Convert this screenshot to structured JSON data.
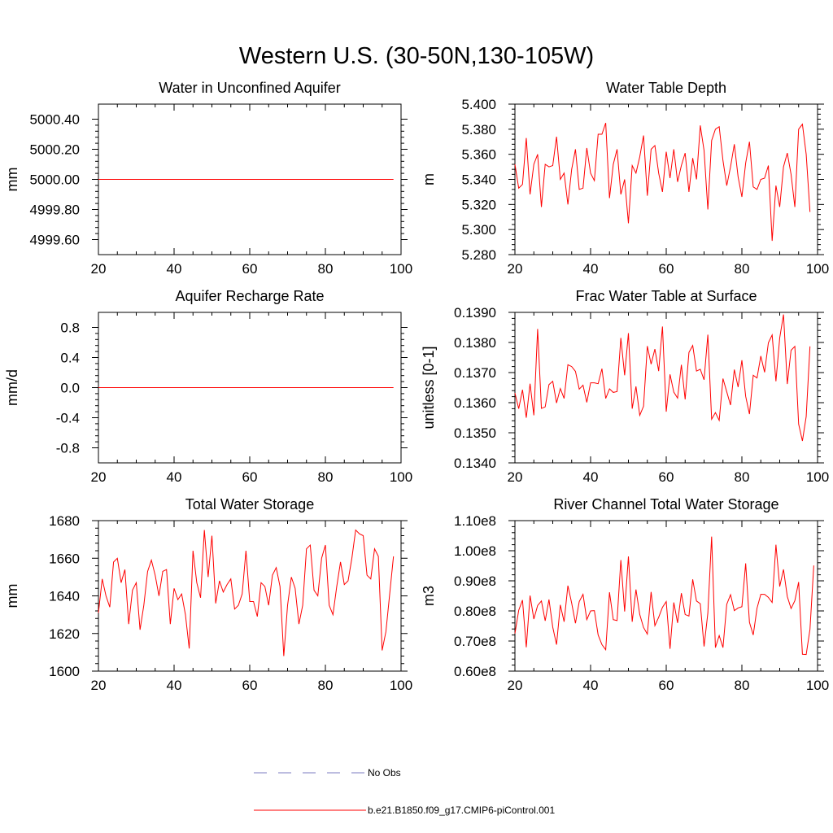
{
  "chart_data": {
    "title": "Western U.S. (30-50N,130-105W)",
    "legend": [
      {
        "label": "No Obs",
        "color": "#7b7bc0",
        "style": "dashed"
      },
      {
        "label": "b.e21.B1850.f09_g17.CMIP6-piControl.001",
        "color": "#ff0000",
        "style": "solid"
      }
    ],
    "panels": [
      {
        "type": "line",
        "title": "Water in Unconfined Aquifer",
        "ylabel": "mm",
        "xlim": [
          20,
          100
        ],
        "ylim": [
          4999.5,
          5000.5
        ],
        "xticks": [
          20,
          40,
          60,
          80,
          100
        ],
        "yticks": [
          4999.6,
          4999.8,
          5000.0,
          5000.2,
          5000.4
        ],
        "ytick_labels": [
          "4999.60",
          "4999.80",
          "5000.00",
          "5000.20",
          "5000.40"
        ],
        "x_start": 20,
        "values": [
          5000,
          5000,
          5000,
          5000,
          5000,
          5000,
          5000,
          5000,
          5000,
          5000,
          5000,
          5000,
          5000,
          5000,
          5000,
          5000,
          5000,
          5000,
          5000,
          5000,
          5000,
          5000,
          5000,
          5000,
          5000,
          5000,
          5000,
          5000,
          5000,
          5000,
          5000,
          5000,
          5000,
          5000,
          5000,
          5000,
          5000,
          5000,
          5000,
          5000,
          5000,
          5000,
          5000,
          5000,
          5000,
          5000,
          5000,
          5000,
          5000,
          5000,
          5000,
          5000,
          5000,
          5000,
          5000,
          5000,
          5000,
          5000,
          5000,
          5000,
          5000,
          5000,
          5000,
          5000,
          5000,
          5000,
          5000,
          5000,
          5000,
          5000,
          5000,
          5000,
          5000,
          5000,
          5000,
          5000,
          5000,
          5000,
          5000
        ]
      },
      {
        "type": "line",
        "title": "Water Table Depth",
        "ylabel": "m",
        "xlim": [
          20,
          100
        ],
        "ylim": [
          5.28,
          5.4
        ],
        "xticks": [
          20,
          40,
          60,
          80,
          100
        ],
        "yticks": [
          5.28,
          5.3,
          5.32,
          5.34,
          5.36,
          5.38,
          5.4
        ],
        "ytick_labels": [
          "5.280",
          "5.300",
          "5.320",
          "5.340",
          "5.360",
          "5.380",
          "5.400"
        ],
        "x_start": 20,
        "values": [
          5.352,
          5.333,
          5.336,
          5.373,
          5.328,
          5.352,
          5.36,
          5.318,
          5.352,
          5.35,
          5.351,
          5.374,
          5.34,
          5.345,
          5.32,
          5.348,
          5.364,
          5.332,
          5.333,
          5.365,
          5.345,
          5.339,
          5.376,
          5.376,
          5.385,
          5.325,
          5.352,
          5.364,
          5.328,
          5.34,
          5.305,
          5.351,
          5.345,
          5.358,
          5.375,
          5.327,
          5.364,
          5.367,
          5.345,
          5.33,
          5.362,
          5.341,
          5.364,
          5.338,
          5.351,
          5.361,
          5.33,
          5.357,
          5.34,
          5.383,
          5.363,
          5.316,
          5.371,
          5.38,
          5.382,
          5.355,
          5.335,
          5.35,
          5.368,
          5.342,
          5.326,
          5.353,
          5.37,
          5.334,
          5.332,
          5.34,
          5.341,
          5.351,
          5.291,
          5.335,
          5.318,
          5.35,
          5.361,
          5.344,
          5.318,
          5.38,
          5.384,
          5.36,
          5.314
        ]
      },
      {
        "type": "line",
        "title": "Aquifer Recharge Rate",
        "ylabel": "mm/d",
        "xlim": [
          20,
          100
        ],
        "ylim": [
          -1.0,
          1.0
        ],
        "xticks": [
          20,
          40,
          60,
          80,
          100
        ],
        "yticks": [
          -0.8,
          -0.4,
          0.0,
          0.4,
          0.8
        ],
        "ytick_labels": [
          "-0.8",
          "-0.4",
          "0.0",
          "0.4",
          "0.8"
        ],
        "x_start": 20,
        "values": [
          0,
          0,
          0,
          0,
          0,
          0,
          0,
          0,
          0,
          0,
          0,
          0,
          0,
          0,
          0,
          0,
          0,
          0,
          0,
          0,
          0,
          0,
          0,
          0,
          0,
          0,
          0,
          0,
          0,
          0,
          0,
          0,
          0,
          0,
          0,
          0,
          0,
          0,
          0,
          0,
          0,
          0,
          0,
          0,
          0,
          0,
          0,
          0,
          0,
          0,
          0,
          0,
          0,
          0,
          0,
          0,
          0,
          0,
          0,
          0,
          0,
          0,
          0,
          0,
          0,
          0,
          0,
          0,
          0,
          0,
          0,
          0,
          0,
          0,
          0,
          0,
          0,
          0,
          0
        ]
      },
      {
        "type": "line",
        "title": "Frac Water Table at Surface",
        "ylabel": "unitless [0-1]",
        "xlim": [
          20,
          100
        ],
        "ylim": [
          0.134,
          0.139
        ],
        "xticks": [
          20,
          40,
          60,
          80,
          100
        ],
        "yticks": [
          0.134,
          0.135,
          0.136,
          0.137,
          0.138,
          0.139
        ],
        "ytick_labels": [
          "0.1340",
          "0.1350",
          "0.1360",
          "0.1370",
          "0.1380",
          "0.1390"
        ],
        "x_start": 20,
        "values": [
          0.13632,
          0.1358,
          0.13643,
          0.1355,
          0.13663,
          0.13558,
          0.13845,
          0.13581,
          0.13586,
          0.1366,
          0.13671,
          0.13599,
          0.13647,
          0.13614,
          0.13726,
          0.1372,
          0.13704,
          0.13645,
          0.13658,
          0.13601,
          0.13666,
          0.13666,
          0.13663,
          0.13713,
          0.13614,
          0.13646,
          0.13634,
          0.13637,
          0.13815,
          0.13691,
          0.13831,
          0.1358,
          0.13654,
          0.13558,
          0.13588,
          0.13788,
          0.13728,
          0.13778,
          0.13705,
          0.13853,
          0.1357,
          0.13694,
          0.13635,
          0.13615,
          0.13726,
          0.13611,
          0.13767,
          0.1379,
          0.13705,
          0.13711,
          0.13676,
          0.13826,
          0.13545,
          0.13567,
          0.13541,
          0.1368,
          0.13636,
          0.13592,
          0.1371,
          0.13652,
          0.13741,
          0.13621,
          0.13562,
          0.13691,
          0.13682,
          0.13755,
          0.13701,
          0.13799,
          0.13825,
          0.13671,
          0.13815,
          0.13893,
          0.13662,
          0.13774,
          0.13787,
          0.13529,
          0.13473,
          0.13554,
          0.13787
        ]
      },
      {
        "type": "line",
        "title": "Total Water Storage",
        "ylabel": "mm",
        "xlim": [
          20,
          100
        ],
        "ylim": [
          1600,
          1680
        ],
        "xticks": [
          20,
          40,
          60,
          80,
          100
        ],
        "yticks": [
          1600,
          1620,
          1640,
          1660,
          1680
        ],
        "ytick_labels": [
          "1600",
          "1620",
          "1640",
          "1660",
          "1680"
        ],
        "x_start": 20,
        "values": [
          1631,
          1649,
          1640,
          1634,
          1658,
          1660,
          1647,
          1654,
          1625,
          1643,
          1647,
          1622,
          1635,
          1653,
          1659,
          1651,
          1640,
          1653,
          1654,
          1625,
          1644,
          1638,
          1641,
          1630,
          1612,
          1664,
          1647,
          1639,
          1675,
          1650,
          1672,
          1636,
          1648,
          1642,
          1646,
          1649,
          1633,
          1635,
          1641,
          1664,
          1637,
          1637,
          1629,
          1647,
          1645,
          1635,
          1651,
          1655,
          1645,
          1608,
          1635,
          1650,
          1644,
          1625,
          1635,
          1665,
          1667,
          1643,
          1640,
          1660,
          1667,
          1635,
          1630,
          1645,
          1658,
          1646,
          1648,
          1660,
          1675,
          1673,
          1672,
          1651,
          1649,
          1665,
          1661,
          1611,
          1621,
          1641,
          1661
        ]
      },
      {
        "type": "line",
        "title": "River Channel Total Water Storage",
        "ylabel": "m3",
        "xlim": [
          20,
          100
        ],
        "ylim": [
          60000000,
          110000000
        ],
        "xticks": [
          20,
          40,
          60,
          80,
          100
        ],
        "yticks": [
          60000000,
          70000000,
          80000000,
          90000000,
          100000000,
          110000000
        ],
        "ytick_labels": [
          "0.60e8",
          "0.70e8",
          "0.80e8",
          "0.90e8",
          "1.00e8",
          "1.10e8"
        ],
        "x_start": 20,
        "values": [
          72500000,
          80200000,
          83600000,
          67900000,
          85100000,
          77300000,
          81800000,
          83300000,
          76700000,
          83800000,
          74600000,
          68800000,
          82000000,
          76400000,
          88400000,
          82600000,
          75900000,
          83100000,
          85500000,
          77100000,
          80000000,
          80100000,
          72000000,
          68800000,
          67100000,
          86200000,
          77100000,
          76800000,
          96900000,
          79800000,
          98100000,
          76400000,
          87100000,
          78800000,
          74500000,
          72300000,
          86300000,
          75100000,
          77900000,
          81200000,
          83100000,
          67400000,
          82800000,
          76000000,
          85900000,
          78800000,
          78300000,
          90500000,
          83300000,
          82400000,
          68200000,
          79300000,
          104700000,
          67800000,
          71800000,
          67800000,
          82200000,
          85400000,
          80100000,
          81000000,
          81400000,
          95800000,
          76200000,
          72000000,
          80900000,
          85500000,
          85500000,
          84500000,
          82800000,
          102000000,
          88100000,
          93800000,
          84800000,
          80800000,
          83400000,
          89600000,
          65600000,
          65500000,
          73900000,
          95100000
        ]
      }
    ]
  }
}
